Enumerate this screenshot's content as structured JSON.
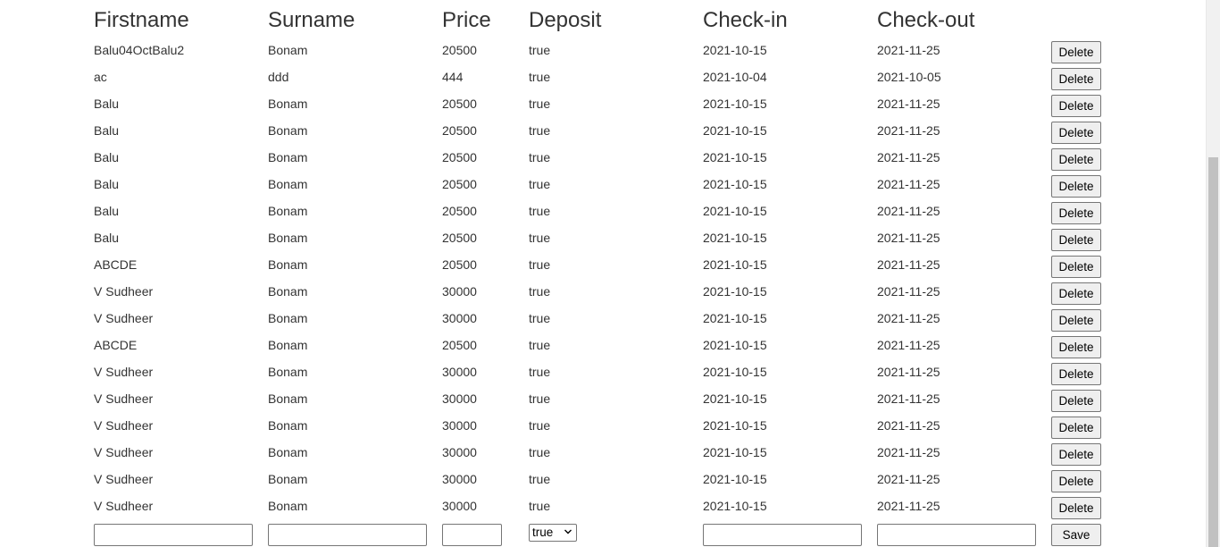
{
  "table": {
    "headers": [
      "Firstname",
      "Surname",
      "Price",
      "Deposit",
      "Check-in",
      "Check-out"
    ],
    "delete_label": "Delete",
    "rows": [
      {
        "firstname": "Balu04OctBalu2",
        "surname": "Bonam",
        "price": "20500",
        "deposit": "true",
        "checkin": "2021-10-15",
        "checkout": "2021-11-25"
      },
      {
        "firstname": "ac",
        "surname": "ddd",
        "price": "444",
        "deposit": "true",
        "checkin": "2021-10-04",
        "checkout": "2021-10-05"
      },
      {
        "firstname": "Balu",
        "surname": "Bonam",
        "price": "20500",
        "deposit": "true",
        "checkin": "2021-10-15",
        "checkout": "2021-11-25"
      },
      {
        "firstname": "Balu",
        "surname": "Bonam",
        "price": "20500",
        "deposit": "true",
        "checkin": "2021-10-15",
        "checkout": "2021-11-25"
      },
      {
        "firstname": "Balu",
        "surname": "Bonam",
        "price": "20500",
        "deposit": "true",
        "checkin": "2021-10-15",
        "checkout": "2021-11-25"
      },
      {
        "firstname": "Balu",
        "surname": "Bonam",
        "price": "20500",
        "deposit": "true",
        "checkin": "2021-10-15",
        "checkout": "2021-11-25"
      },
      {
        "firstname": "Balu",
        "surname": "Bonam",
        "price": "20500",
        "deposit": "true",
        "checkin": "2021-10-15",
        "checkout": "2021-11-25"
      },
      {
        "firstname": "Balu",
        "surname": "Bonam",
        "price": "20500",
        "deposit": "true",
        "checkin": "2021-10-15",
        "checkout": "2021-11-25"
      },
      {
        "firstname": "ABCDE",
        "surname": "Bonam",
        "price": "20500",
        "deposit": "true",
        "checkin": "2021-10-15",
        "checkout": "2021-11-25"
      },
      {
        "firstname": "V Sudheer",
        "surname": "Bonam",
        "price": "30000",
        "deposit": "true",
        "checkin": "2021-10-15",
        "checkout": "2021-11-25"
      },
      {
        "firstname": "V Sudheer",
        "surname": "Bonam",
        "price": "30000",
        "deposit": "true",
        "checkin": "2021-10-15",
        "checkout": "2021-11-25"
      },
      {
        "firstname": "ABCDE",
        "surname": "Bonam",
        "price": "20500",
        "deposit": "true",
        "checkin": "2021-10-15",
        "checkout": "2021-11-25"
      },
      {
        "firstname": "V Sudheer",
        "surname": "Bonam",
        "price": "30000",
        "deposit": "true",
        "checkin": "2021-10-15",
        "checkout": "2021-11-25"
      },
      {
        "firstname": "V Sudheer",
        "surname": "Bonam",
        "price": "30000",
        "deposit": "true",
        "checkin": "2021-10-15",
        "checkout": "2021-11-25"
      },
      {
        "firstname": "V Sudheer",
        "surname": "Bonam",
        "price": "30000",
        "deposit": "true",
        "checkin": "2021-10-15",
        "checkout": "2021-11-25"
      },
      {
        "firstname": "V Sudheer",
        "surname": "Bonam",
        "price": "30000",
        "deposit": "true",
        "checkin": "2021-10-15",
        "checkout": "2021-11-25"
      },
      {
        "firstname": "V Sudheer",
        "surname": "Bonam",
        "price": "30000",
        "deposit": "true",
        "checkin": "2021-10-15",
        "checkout": "2021-11-25"
      },
      {
        "firstname": "V Sudheer",
        "surname": "Bonam",
        "price": "30000",
        "deposit": "true",
        "checkin": "2021-10-15",
        "checkout": "2021-11-25"
      }
    ]
  },
  "form": {
    "firstname_value": "",
    "surname_value": "",
    "price_value": "",
    "deposit_selected": "true",
    "checkin_value": "",
    "checkout_value": "",
    "save_label": "Save"
  },
  "icons": {
    "deposit_dropdown": "chevron-down-icon"
  }
}
